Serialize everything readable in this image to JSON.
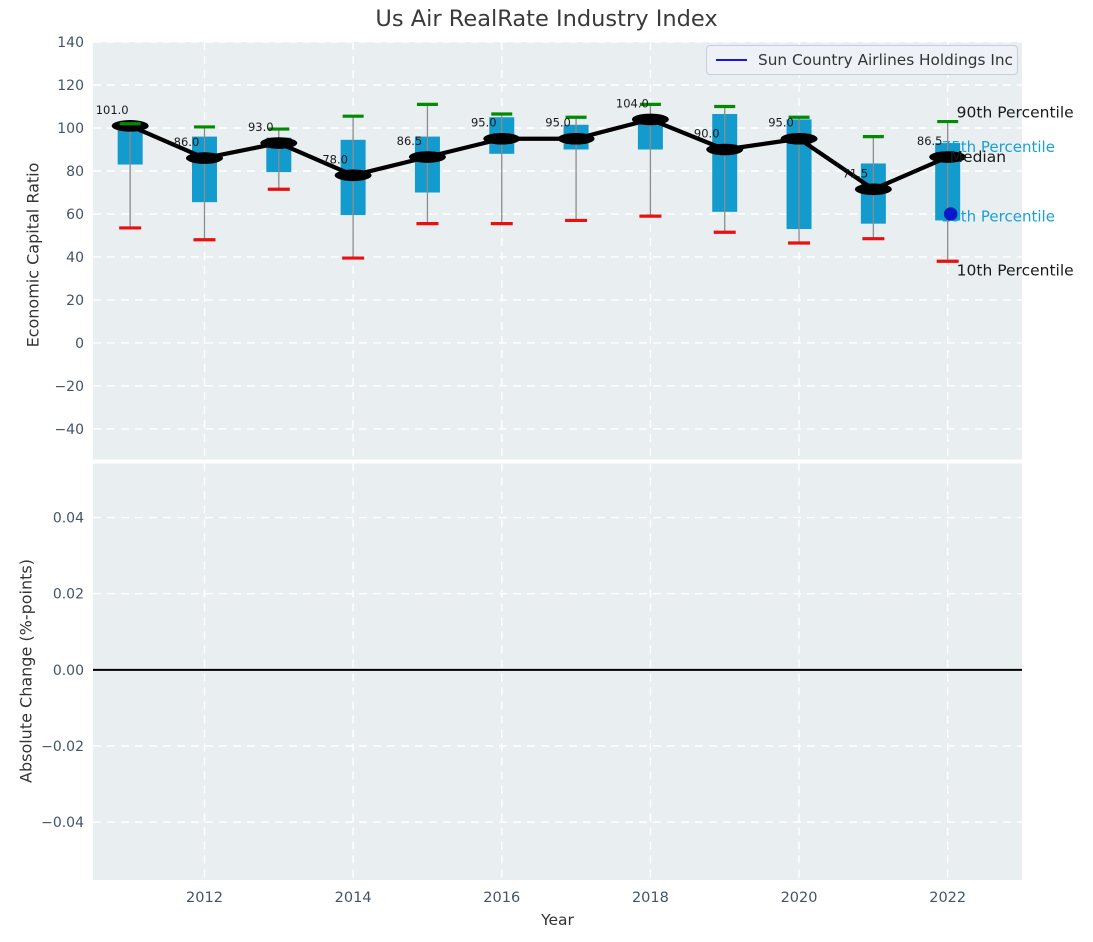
{
  "title": "Us Air RealRate Industry Index",
  "xlabel": "Year",
  "legend": {
    "label": "Sun Country Airlines Holdings Inc",
    "line_color": "#1a14e8"
  },
  "colors": {
    "plot_bg": "#e9eef1",
    "grid": "#ffffff",
    "box_fill": "#149bce",
    "p90_cap": "#008b00",
    "p10_cap": "#e81010",
    "whisker": "#8c8c8c",
    "median": "#000000",
    "company_point": "#0a16d2",
    "cyan_annotation": "#18a0d8",
    "tick_label": "#44546a",
    "dark_text": "#1a1a1a"
  },
  "chart_data": [
    {
      "type": "box",
      "ylabel": "Economic Capital Ratio",
      "ylim": [
        -54.2,
        140
      ],
      "yticks": [
        140,
        120,
        100,
        80,
        60,
        40,
        20,
        0,
        -20,
        -40
      ],
      "ytick_labels": [
        "140",
        "120",
        "100",
        "80",
        "60",
        "40",
        "20",
        "0",
        "−20",
        "−40"
      ],
      "xlim": [
        2010.5,
        2023
      ],
      "xticks": [
        2012,
        2014,
        2016,
        2018,
        2020,
        2022
      ],
      "xtick_labels": [
        "2012",
        "2014",
        "2016",
        "2018",
        "2020",
        "2022"
      ],
      "grid": "white-dashed",
      "legend_position": "upper right",
      "boxes": [
        {
          "year": 2011,
          "median": 101.0,
          "p75": 100.5,
          "p25": 83.0,
          "p90": 102.0,
          "p10": 53.5
        },
        {
          "year": 2012,
          "median": 86.0,
          "p75": 96.0,
          "p25": 65.5,
          "p90": 100.5,
          "p10": 48.0
        },
        {
          "year": 2013,
          "median": 93.0,
          "p75": 95.5,
          "p25": 79.5,
          "p90": 99.5,
          "p10": 71.5
        },
        {
          "year": 2014,
          "median": 78.0,
          "p75": 94.5,
          "p25": 59.5,
          "p90": 105.5,
          "p10": 39.5
        },
        {
          "year": 2015,
          "median": 86.5,
          "p75": 96.0,
          "p25": 70.0,
          "p90": 111.0,
          "p10": 55.5
        },
        {
          "year": 2016,
          "median": 95.0,
          "p75": 105.0,
          "p25": 88.0,
          "p90": 106.5,
          "p10": 55.5
        },
        {
          "year": 2017,
          "median": 95.0,
          "p75": 101.5,
          "p25": 90.0,
          "p90": 105.0,
          "p10": 57.0
        },
        {
          "year": 2018,
          "median": 104.0,
          "p75": 105.0,
          "p25": 90.0,
          "p90": 111.0,
          "p10": 59.0
        },
        {
          "year": 2019,
          "median": 90.0,
          "p75": 106.5,
          "p25": 61.0,
          "p90": 110.0,
          "p10": 51.5
        },
        {
          "year": 2020,
          "median": 95.0,
          "p75": 104.0,
          "p25": 53.0,
          "p90": 105.0,
          "p10": 46.5
        },
        {
          "year": 2021,
          "median": 71.5,
          "p75": 83.5,
          "p25": 55.5,
          "p90": 96.0,
          "p10": 48.5
        },
        {
          "year": 2022,
          "median": 86.5,
          "p75": 93.0,
          "p25": 57.0,
          "p90": 103.0,
          "p10": 38.0
        }
      ],
      "median_labels": [
        "101.0",
        "86.0",
        "93.0",
        "78.0",
        "86.5",
        "95.0",
        "95.0",
        "104.0",
        "90.0",
        "95.0",
        "71.5",
        "86.5"
      ],
      "annotations": [
        {
          "text": "90th Percentile",
          "anchor": "p90",
          "style": "black"
        },
        {
          "text": "75th Percentile",
          "anchor": "p75",
          "style": "cyan-behind-box"
        },
        {
          "text": "Median",
          "anchor": "median",
          "style": "black"
        },
        {
          "text": "25th Percentile",
          "anchor": "p25",
          "style": "cyan-behind-box"
        },
        {
          "text": "10th Percentile",
          "anchor": "p10",
          "style": "black"
        }
      ],
      "company_point": {
        "year": 2022,
        "value": 60,
        "series": "Sun Country Airlines Holdings Inc"
      }
    },
    {
      "type": "line",
      "ylabel": "Absolute Change (%-points)",
      "ylim": [
        -0.0552,
        0.0542
      ],
      "yticks": [
        0.04,
        0.02,
        0.0,
        -0.02,
        -0.04
      ],
      "ytick_labels": [
        "0.04",
        "0.02",
        "0.00",
        "−0.02",
        "−0.04"
      ],
      "xlim": [
        2010.5,
        2023
      ],
      "xticks": [
        2012,
        2014,
        2016,
        2018,
        2020,
        2022
      ],
      "xtick_labels": [
        "2012",
        "2014",
        "2016",
        "2018",
        "2020",
        "2022"
      ],
      "grid": "white-dashed",
      "zero_line": 0.0,
      "series": []
    }
  ]
}
